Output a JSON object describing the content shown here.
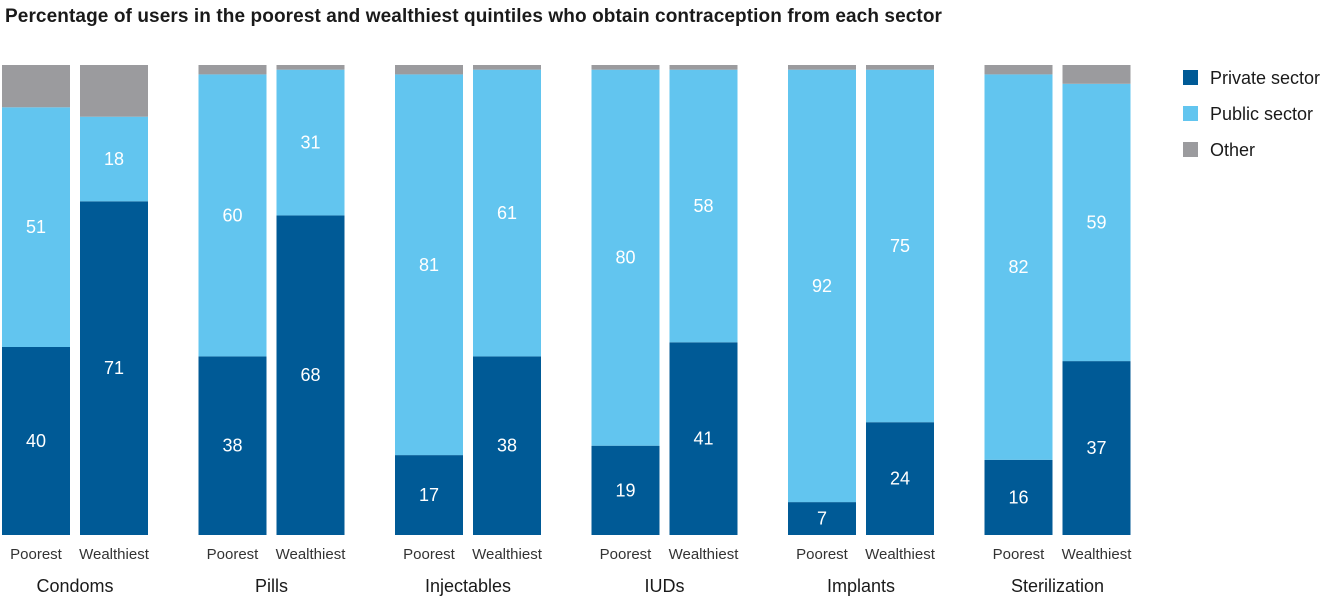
{
  "colors": {
    "private": "#005a96",
    "public": "#62c5ef",
    "other": "#9b9b9e"
  },
  "chart_data": {
    "type": "bar",
    "stacked": true,
    "title": "Percentage of users in the poorest and wealthiest quintiles who obtain contraception from each sector",
    "ylim": [
      0,
      100
    ],
    "grid": false,
    "legend_position": "top-right",
    "bar_labels": [
      "Poorest",
      "Wealthiest"
    ],
    "groups": [
      {
        "name": "Condoms",
        "bars": [
          {
            "label": "Poorest",
            "private": 40,
            "public": 51,
            "other": 9
          },
          {
            "label": "Wealthiest",
            "private": 71,
            "public": 18,
            "other": 11
          }
        ]
      },
      {
        "name": "Pills",
        "bars": [
          {
            "label": "Poorest",
            "private": 38,
            "public": 60,
            "other": 2
          },
          {
            "label": "Wealthiest",
            "private": 68,
            "public": 31,
            "other": 1
          }
        ]
      },
      {
        "name": "Injectables",
        "bars": [
          {
            "label": "Poorest",
            "private": 17,
            "public": 81,
            "other": 2
          },
          {
            "label": "Wealthiest",
            "private": 38,
            "public": 61,
            "other": 1
          }
        ]
      },
      {
        "name": "IUDs",
        "bars": [
          {
            "label": "Poorest",
            "private": 19,
            "public": 80,
            "other": 1
          },
          {
            "label": "Wealthiest",
            "private": 41,
            "public": 58,
            "other": 1
          }
        ]
      },
      {
        "name": "Implants",
        "bars": [
          {
            "label": "Poorest",
            "private": 7,
            "public": 92,
            "other": 1
          },
          {
            "label": "Wealthiest",
            "private": 24,
            "public": 75,
            "other": 1
          }
        ]
      },
      {
        "name": "Sterilization",
        "bars": [
          {
            "label": "Poorest",
            "private": 16,
            "public": 82,
            "other": 2
          },
          {
            "label": "Wealthiest",
            "private": 37,
            "public": 59,
            "other": 4
          }
        ]
      }
    ],
    "legend": [
      {
        "key": "private",
        "label": "Private sector"
      },
      {
        "key": "public",
        "label": "Public sector"
      },
      {
        "key": "other",
        "label": "Other"
      }
    ]
  }
}
